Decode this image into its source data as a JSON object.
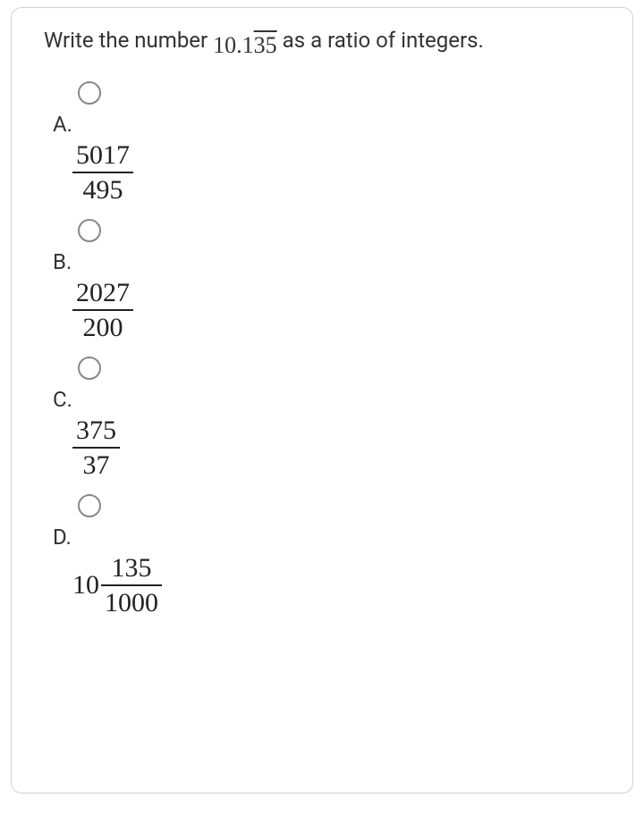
{
  "question": {
    "prefix": "Write the number",
    "decimal_whole": "10.1",
    "decimal_repeating": "35",
    "suffix": "as a ratio of integers."
  },
  "options": [
    {
      "letter": "A.",
      "type": "fraction",
      "num": "5017",
      "den": "495"
    },
    {
      "letter": "B.",
      "type": "fraction",
      "num": "2027",
      "den": "200"
    },
    {
      "letter": "C.",
      "type": "fraction",
      "num": "375",
      "den": "37"
    },
    {
      "letter": "D.",
      "type": "mixed",
      "whole": "10",
      "num": "135",
      "den": "1000"
    }
  ],
  "style": {
    "text_color": "#333333",
    "math_color": "#222222",
    "border_color": "#d0d0d0",
    "radio_border": "#888888",
    "background": "#ffffff"
  }
}
